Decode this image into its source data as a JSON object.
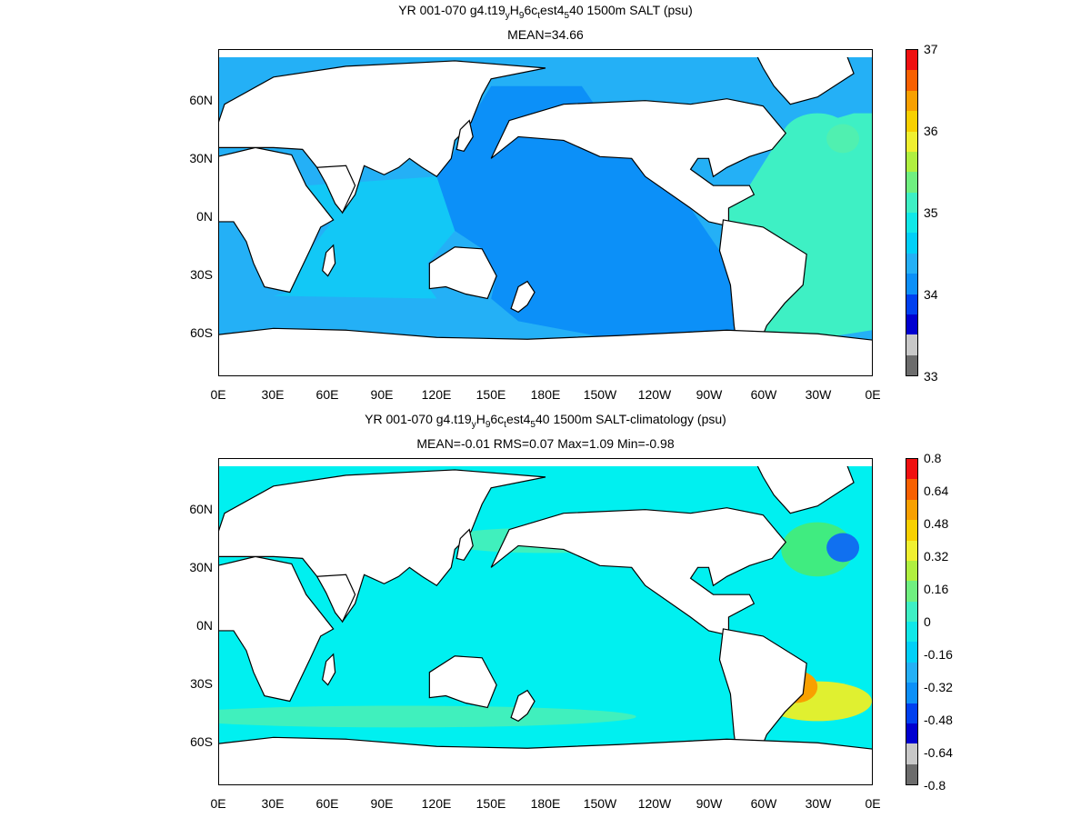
{
  "panels": [
    {
      "title_parts": [
        "YR 001-070 g4.t19",
        "y",
        "H",
        "9",
        "6c",
        "t",
        "est4",
        "5",
        "40 1500m SALT (psu)"
      ],
      "subtitle": "MEAN=34.66",
      "x_ticks": [
        "0E",
        "30E",
        "60E",
        "90E",
        "120E",
        "150E",
        "180E",
        "150W",
        "120W",
        "90W",
        "60W",
        "30W",
        "0E"
      ],
      "y_ticks": [
        "60N",
        "30N",
        "0N",
        "30S",
        "60S"
      ],
      "colorbar_labels": [
        "37",
        "36",
        "35",
        "34",
        "33"
      ],
      "ocean_color": "#0c90f8",
      "colors": {
        "pacific": "#0c90f8",
        "indian": "#12c8f6",
        "atlantic": "#3ef0c4",
        "southern": "#24b0f6",
        "labrador": "#3ef0c4",
        "gulf": "#50f0b0"
      }
    },
    {
      "title_parts": [
        "YR 001-070 g4.t19",
        "y",
        "H",
        "9",
        "6c",
        "t",
        "est4",
        "5",
        "40 1500m SALT-climatology (psu)"
      ],
      "subtitle": "MEAN=-0.01   RMS=0.07   Max=1.09   Min=-0.98",
      "x_ticks": [
        "0E",
        "30E",
        "60E",
        "90E",
        "120E",
        "150E",
        "180E",
        "150W",
        "120W",
        "90W",
        "60W",
        "30W",
        "0E"
      ],
      "y_ticks": [
        "60N",
        "30N",
        "0N",
        "30S",
        "60S"
      ],
      "colorbar_labels": [
        "0.8",
        "0.64",
        "0.48",
        "0.32",
        "0.16",
        "0",
        "-0.16",
        "-0.32",
        "-0.48",
        "-0.64",
        "-0.8"
      ],
      "ocean_color": "#00f0f0",
      "colors": {
        "pacific": "#00f0f0",
        "indian": "#00f0f0",
        "atlantic": "#00f0f0",
        "southern": "#00f0f0",
        "labrador": "#40ec80",
        "gulf": "#1070f0",
        "anomaly_high": "#f01010",
        "anomaly_mid": "#f8a000",
        "anomaly_low": "#e0f030",
        "band": "#50f0b0"
      }
    }
  ],
  "colorbar_colors": [
    "#6c6c6c",
    "#c8c8c8",
    "#0000d0",
    "#0040f0",
    "#0c90f8",
    "#24b0f6",
    "#00d0f8",
    "#10e8e8",
    "#3ef0c4",
    "#70f080",
    "#b0f040",
    "#f0f030",
    "#f8d000",
    "#f8a000",
    "#f86000",
    "#f01010"
  ]
}
